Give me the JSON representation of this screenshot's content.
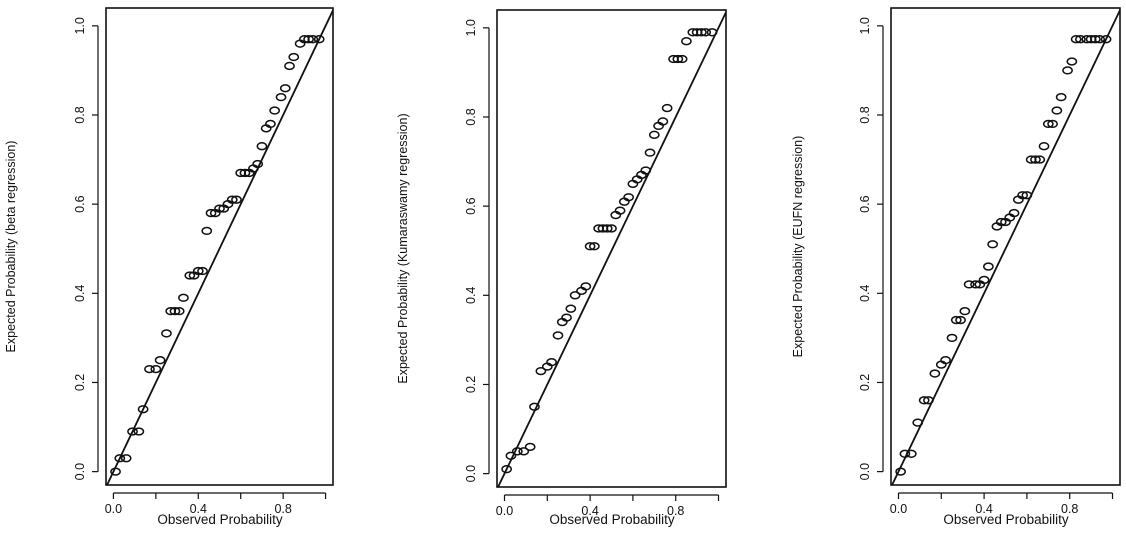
{
  "chart_data": [
    {
      "type": "scatter",
      "title": "",
      "xlabel": "Observed Probability",
      "ylabel": "Expected Probability (beta regression)",
      "xlim": [
        0,
        1
      ],
      "ylim": [
        0,
        1
      ],
      "xticks": [
        "0.0",
        "0.4",
        "0.8"
      ],
      "yticks": [
        "0.0",
        "0.2",
        "0.4",
        "0.6",
        "0.8",
        "1.0"
      ],
      "grid": false,
      "reference_line": "y = x",
      "series": [
        {
          "x": [
            0.01,
            0.03,
            0.06,
            0.09,
            0.12,
            0.14,
            0.17,
            0.2,
            0.22,
            0.25,
            0.27,
            0.29,
            0.31,
            0.33,
            0.36,
            0.38,
            0.4,
            0.42,
            0.44,
            0.46,
            0.48,
            0.5,
            0.52,
            0.54,
            0.56,
            0.58,
            0.6,
            0.62,
            0.64,
            0.66,
            0.68,
            0.7,
            0.72,
            0.74,
            0.76,
            0.79,
            0.81,
            0.83,
            0.85,
            0.88,
            0.9,
            0.92,
            0.94,
            0.97
          ],
          "y": [
            0.0,
            0.03,
            0.03,
            0.09,
            0.09,
            0.14,
            0.23,
            0.23,
            0.25,
            0.31,
            0.36,
            0.36,
            0.36,
            0.39,
            0.44,
            0.44,
            0.45,
            0.45,
            0.54,
            0.58,
            0.58,
            0.59,
            0.59,
            0.6,
            0.61,
            0.61,
            0.67,
            0.67,
            0.67,
            0.68,
            0.69,
            0.73,
            0.77,
            0.78,
            0.81,
            0.84,
            0.86,
            0.91,
            0.93,
            0.96,
            0.97,
            0.97,
            0.97,
            0.97
          ]
        }
      ]
    },
    {
      "type": "scatter",
      "title": "",
      "xlabel": "Observed Probability",
      "ylabel": "Expected Probability (Kumaraswamy regression)",
      "xlim": [
        0,
        1
      ],
      "ylim": [
        0,
        1
      ],
      "xticks": [
        "0.0",
        "0.4",
        "0.8"
      ],
      "yticks": [
        "0.0",
        "0.2",
        "0.4",
        "0.6",
        "0.8",
        "1.0"
      ],
      "grid": false,
      "reference_line": "y = x",
      "series": [
        {
          "x": [
            0.01,
            0.03,
            0.06,
            0.09,
            0.12,
            0.14,
            0.17,
            0.2,
            0.22,
            0.25,
            0.27,
            0.29,
            0.31,
            0.33,
            0.36,
            0.38,
            0.4,
            0.42,
            0.44,
            0.46,
            0.48,
            0.5,
            0.52,
            0.54,
            0.56,
            0.58,
            0.6,
            0.62,
            0.64,
            0.66,
            0.68,
            0.7,
            0.72,
            0.74,
            0.76,
            0.79,
            0.81,
            0.83,
            0.85,
            0.88,
            0.9,
            0.92,
            0.94,
            0.97
          ],
          "y": [
            0.01,
            0.04,
            0.05,
            0.05,
            0.06,
            0.15,
            0.23,
            0.24,
            0.25,
            0.31,
            0.34,
            0.35,
            0.37,
            0.4,
            0.41,
            0.42,
            0.51,
            0.51,
            0.55,
            0.55,
            0.55,
            0.55,
            0.58,
            0.59,
            0.61,
            0.62,
            0.65,
            0.66,
            0.67,
            0.68,
            0.72,
            0.76,
            0.78,
            0.79,
            0.82,
            0.93,
            0.93,
            0.93,
            0.97,
            0.99,
            0.99,
            0.99,
            0.99,
            0.99
          ]
        }
      ]
    },
    {
      "type": "scatter",
      "title": "",
      "xlabel": "Observed Probability",
      "ylabel": "Expected Probability (EUFN regression)",
      "xlim": [
        0,
        1
      ],
      "ylim": [
        0,
        1
      ],
      "xticks": [
        "0.0",
        "0.4",
        "0.8"
      ],
      "yticks": [
        "0.0",
        "0.2",
        "0.4",
        "0.6",
        "0.8",
        "1.0"
      ],
      "grid": false,
      "reference_line": "y = x",
      "series": [
        {
          "x": [
            0.01,
            0.03,
            0.06,
            0.09,
            0.12,
            0.14,
            0.17,
            0.2,
            0.22,
            0.25,
            0.27,
            0.29,
            0.31,
            0.33,
            0.36,
            0.38,
            0.4,
            0.42,
            0.44,
            0.46,
            0.48,
            0.5,
            0.52,
            0.54,
            0.56,
            0.58,
            0.6,
            0.62,
            0.64,
            0.66,
            0.68,
            0.7,
            0.72,
            0.74,
            0.76,
            0.79,
            0.81,
            0.83,
            0.85,
            0.88,
            0.9,
            0.92,
            0.94,
            0.97
          ],
          "y": [
            0.0,
            0.04,
            0.04,
            0.11,
            0.16,
            0.16,
            0.22,
            0.24,
            0.25,
            0.3,
            0.34,
            0.34,
            0.36,
            0.42,
            0.42,
            0.42,
            0.43,
            0.46,
            0.51,
            0.55,
            0.56,
            0.56,
            0.57,
            0.58,
            0.61,
            0.62,
            0.62,
            0.7,
            0.7,
            0.7,
            0.73,
            0.78,
            0.78,
            0.81,
            0.84,
            0.9,
            0.92,
            0.97,
            0.97,
            0.97,
            0.97,
            0.97,
            0.97,
            0.97
          ]
        }
      ]
    }
  ]
}
